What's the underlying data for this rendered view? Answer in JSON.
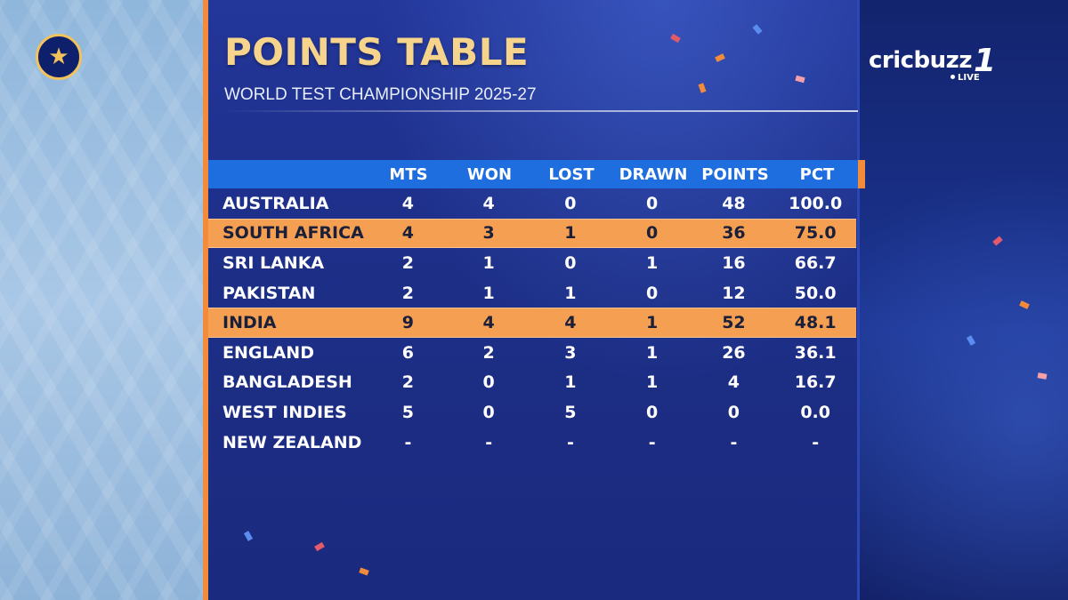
{
  "title": "POINTS TABLE",
  "subtitle": "WORLD TEST CHAMPIONSHIP 2025-27",
  "brand": {
    "name": "cricbuzz",
    "number": "1",
    "live": "LIVE"
  },
  "colors": {
    "accent": "#f28c3a",
    "header": "#1f6ee0",
    "title": "#f6d48b",
    "background": "#1e2f8a"
  },
  "columns": [
    "MTS",
    "WON",
    "LOST",
    "DRAWN",
    "POINTS",
    "PCT"
  ],
  "rows": [
    {
      "team": "AUSTRALIA",
      "mts": "4",
      "won": "4",
      "lost": "0",
      "drawn": "0",
      "points": "48",
      "pct": "100.0",
      "highlight": false
    },
    {
      "team": "SOUTH AFRICA",
      "mts": "4",
      "won": "3",
      "lost": "1",
      "drawn": "0",
      "points": "36",
      "pct": "75.0",
      "highlight": true
    },
    {
      "team": "SRI LANKA",
      "mts": "2",
      "won": "1",
      "lost": "0",
      "drawn": "1",
      "points": "16",
      "pct": "66.7",
      "highlight": false
    },
    {
      "team": "PAKISTAN",
      "mts": "2",
      "won": "1",
      "lost": "1",
      "drawn": "0",
      "points": "12",
      "pct": "50.0",
      "highlight": false
    },
    {
      "team": "INDIA",
      "mts": "9",
      "won": "4",
      "lost": "4",
      "drawn": "1",
      "points": "52",
      "pct": "48.1",
      "highlight": true
    },
    {
      "team": "ENGLAND",
      "mts": "6",
      "won": "2",
      "lost": "3",
      "drawn": "1",
      "points": "26",
      "pct": "36.1",
      "highlight": false
    },
    {
      "team": "BANGLADESH",
      "mts": "2",
      "won": "0",
      "lost": "1",
      "drawn": "1",
      "points": "4",
      "pct": "16.7",
      "highlight": false
    },
    {
      "team": "WEST INDIES",
      "mts": "5",
      "won": "0",
      "lost": "5",
      "drawn": "0",
      "points": "0",
      "pct": "0.0",
      "highlight": false
    },
    {
      "team": "NEW ZEALAND",
      "mts": "-",
      "won": "-",
      "lost": "-",
      "drawn": "-",
      "points": "-",
      "pct": "-",
      "highlight": false
    }
  ]
}
